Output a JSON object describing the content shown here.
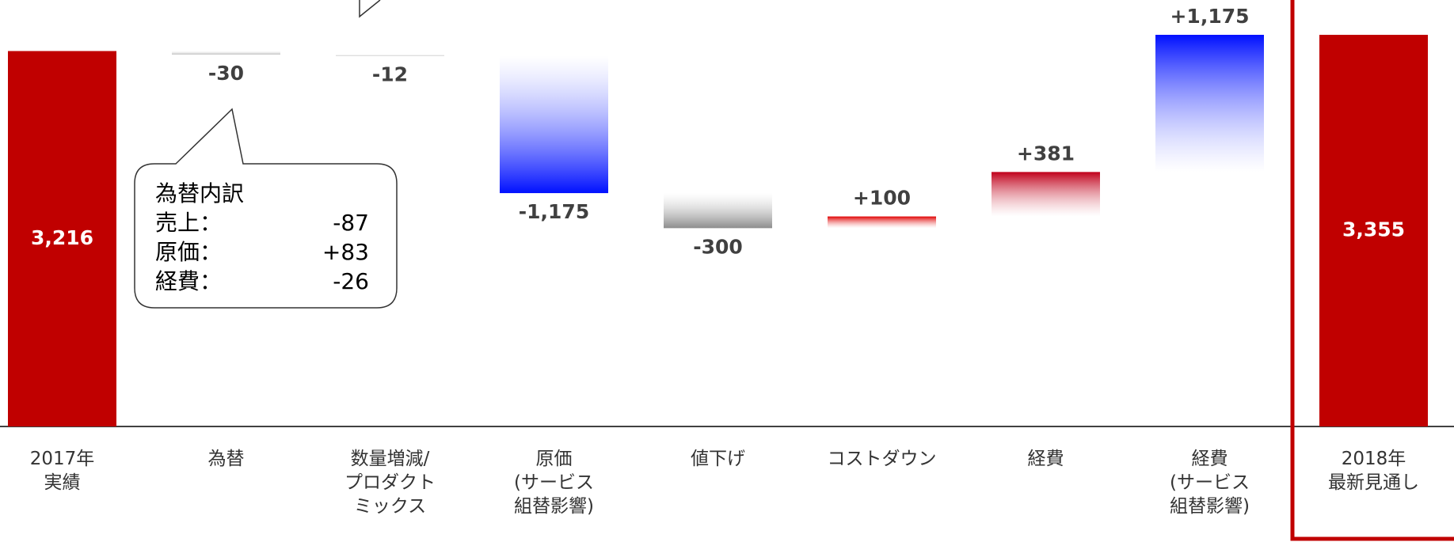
{
  "chart_data": {
    "type": "waterfall",
    "categories": [
      "2017年\n実績",
      "為替",
      "数量増減/\nプロダクト\nミックス",
      "原価\n(サービス\n組替影響)",
      "値下げ",
      "コストダウン",
      "経費",
      "経費\n(サービス\n組替影響)",
      "2018年\n最新見通し"
    ],
    "values": [
      3216,
      -30,
      -12,
      -1175,
      -300,
      100,
      381,
      1175,
      3355
    ],
    "value_labels": [
      "3,216",
      "-30",
      "-12",
      "-1,175",
      "-300",
      "+100",
      "+381",
      "+1,175",
      "3,355"
    ],
    "is_total": [
      true,
      false,
      false,
      false,
      false,
      false,
      false,
      false,
      true
    ],
    "colors": [
      "#c00000",
      "#bfbfbf",
      "#bfbfbf",
      "#0010ff",
      "#8c8c8c",
      "#e00000",
      "#c0001a",
      "#0010ff",
      "#c00000"
    ],
    "annotation": {
      "title": "為替内訳",
      "rows": [
        [
          "売上：",
          "-87"
        ],
        [
          "原価：",
          "+83"
        ],
        [
          "経費：",
          "-26"
        ]
      ]
    }
  }
}
